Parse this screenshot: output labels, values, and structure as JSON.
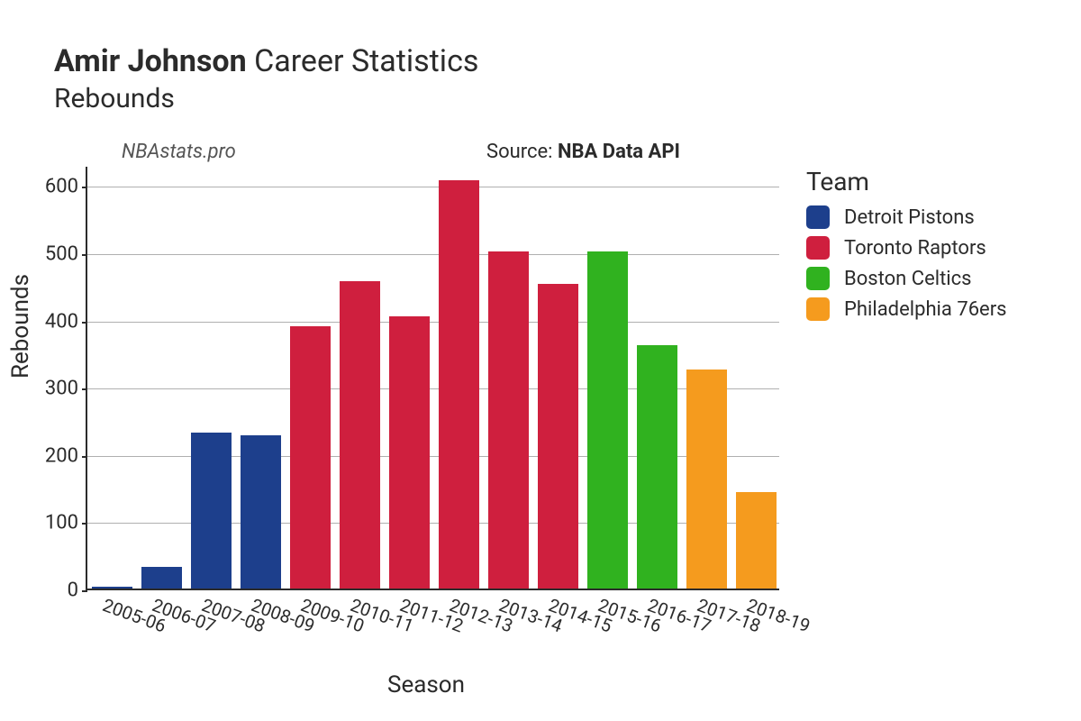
{
  "title": {
    "player_name": "Amir Johnson",
    "suffix": "Career Statistics",
    "stat_name": "Rebounds"
  },
  "attribution": {
    "site": "NBAstats.pro",
    "source_prefix": "Source:",
    "source_name": "NBA Data API"
  },
  "chart": {
    "type": "bar",
    "xlabel": "Season",
    "ylabel": "Rebounds",
    "ylim": [
      0,
      630
    ],
    "yticks": [
      0,
      100,
      200,
      300,
      400,
      500,
      600
    ],
    "background_color": "#ffffff",
    "grid_color": "#b0b0b0",
    "axis_color": "#2b2b2b",
    "bar_width": 0.82,
    "categories": [
      "2005-06",
      "2006-07",
      "2007-08",
      "2008-09",
      "2009-10",
      "2010-11",
      "2011-12",
      "2012-13",
      "2013-14",
      "2014-15",
      "2015-16",
      "2016-17",
      "2017-18",
      "2018-19"
    ],
    "values": [
      3,
      32,
      232,
      228,
      390,
      457,
      405,
      607,
      501,
      453,
      501,
      362,
      326,
      143
    ],
    "team_index": [
      0,
      0,
      0,
      0,
      1,
      1,
      1,
      1,
      1,
      1,
      2,
      2,
      3,
      3
    ],
    "tick_fontsize": 22,
    "label_fontsize": 26,
    "xtick_rotation_deg": 20
  },
  "legend": {
    "title": "Team",
    "items": [
      {
        "label": "Detroit Pistons",
        "color": "#1d3f8c"
      },
      {
        "label": "Toronto Raptors",
        "color": "#cf1f3e"
      },
      {
        "label": "Boston Celtics",
        "color": "#30b21f"
      },
      {
        "label": "Philadelphia 76ers",
        "color": "#f59b1e"
      }
    ]
  }
}
